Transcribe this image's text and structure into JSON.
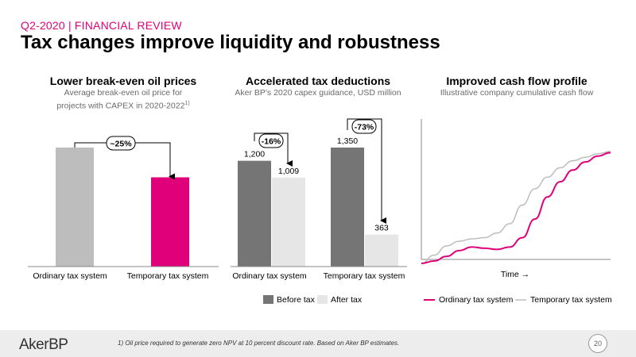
{
  "header": {
    "subtitle": "Q2-2020 | FINANCIAL REVIEW",
    "title": "Tax changes improve liquidity and robustness"
  },
  "colors": {
    "accent": "#e0007a",
    "bar_light_gray": "#bdbdbd",
    "bar_dark_gray": "#757575",
    "bar_pale_gray": "#e6e6e6",
    "line_gray": "#bdbdbd"
  },
  "panel1": {
    "title": "Lower break-even oil prices",
    "subtitle_line1": "Average break-even oil price for",
    "subtitle_line2": "projects with CAPEX in 2020-2022",
    "subtitle_sup": "1)"
  },
  "panel2": {
    "title": "Accelerated tax deductions",
    "subtitle": "Aker BP's 2020 capex guidance, USD million",
    "legend": [
      "Before tax",
      "After tax"
    ]
  },
  "panel3": {
    "title": "Improved cash flow profile",
    "subtitle": "Illustrative company cumulative cash flow",
    "xlabel": "Time →",
    "legend": [
      "Ordinary tax system",
      "Temporary tax system"
    ]
  },
  "chart_data": [
    {
      "type": "bar",
      "categories": [
        "Ordinary tax system",
        "Temporary tax system"
      ],
      "values": [
        100,
        75
      ],
      "annotation": "~25%",
      "colors": [
        "#bdbdbd",
        "#e0007a"
      ]
    },
    {
      "type": "bar",
      "categories": [
        "Ordinary tax system",
        "Temporary tax system"
      ],
      "series": [
        {
          "name": "Before tax",
          "values": [
            1200,
            1350
          ]
        },
        {
          "name": "After tax",
          "values": [
            1009,
            363
          ]
        }
      ],
      "value_labels": [
        [
          "1,200",
          "1,009"
        ],
        [
          "1,350",
          "363"
        ]
      ],
      "annotations": [
        "-16%",
        "-73%"
      ],
      "ylim": [
        0,
        1600
      ]
    },
    {
      "type": "line",
      "xlabel": "Time →",
      "series": [
        {
          "name": "Ordinary tax system",
          "color": "#e0007a",
          "values": [
            0.0,
            0.02,
            0.06,
            0.11,
            0.14,
            0.13,
            0.12,
            0.14,
            0.22,
            0.38,
            0.57,
            0.7,
            0.8,
            0.87,
            0.92,
            0.95
          ]
        },
        {
          "name": "Temporary tax system",
          "color": "#bdbdbd",
          "values": [
            0.0,
            0.07,
            0.15,
            0.19,
            0.21,
            0.22,
            0.26,
            0.34,
            0.5,
            0.64,
            0.74,
            0.82,
            0.88,
            0.91,
            0.94,
            0.96
          ]
        }
      ]
    }
  ],
  "footer": {
    "logo": "AkerBP",
    "footnote": "1) Oil price required to generate zero NPV at 10 percent discount rate. Based on Aker BP estimates.",
    "page": "20"
  }
}
